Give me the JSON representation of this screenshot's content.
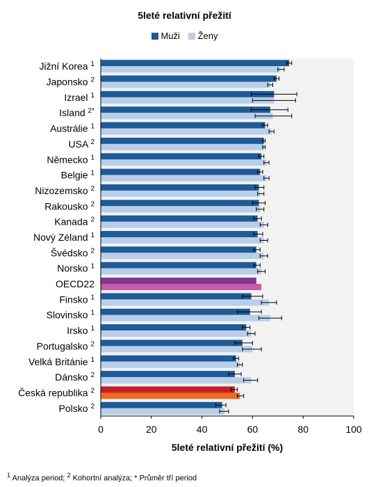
{
  "chart_data": {
    "type": "bar",
    "orientation": "horizontal",
    "title": "5leté relativní přežití",
    "xlabel": "5leté relativní přežití (%)",
    "ylabel": "",
    "xlim": [
      0,
      100
    ],
    "xticks": [
      "0",
      "20",
      "40",
      "60",
      "80",
      "100"
    ],
    "grid": false,
    "legend_position": "top",
    "categories": [
      {
        "name": "Jižní Korea",
        "sup": "1"
      },
      {
        "name": "Japonsko",
        "sup": "2"
      },
      {
        "name": "Izrael",
        "sup": "1"
      },
      {
        "name": "Island",
        "sup": "2*"
      },
      {
        "name": "Austrálie",
        "sup": "1"
      },
      {
        "name": "USA",
        "sup": "2"
      },
      {
        "name": "Německo",
        "sup": "1"
      },
      {
        "name": "Belgie",
        "sup": "1"
      },
      {
        "name": "Nizozemsko",
        "sup": "2"
      },
      {
        "name": "Rakousko",
        "sup": "2"
      },
      {
        "name": "Kanada",
        "sup": "2"
      },
      {
        "name": "Nový Zéland",
        "sup": "1"
      },
      {
        "name": "Švédsko",
        "sup": "2"
      },
      {
        "name": "Norsko",
        "sup": "1"
      },
      {
        "name": "OECD22",
        "sup": ""
      },
      {
        "name": "Finsko",
        "sup": "1"
      },
      {
        "name": "Slovinsko",
        "sup": "1"
      },
      {
        "name": "Irsko",
        "sup": "1"
      },
      {
        "name": "Portugalsko",
        "sup": "2"
      },
      {
        "name": "Velká Británie",
        "sup": "1"
      },
      {
        "name": "Dánsko",
        "sup": "2"
      },
      {
        "name": "Česká republika",
        "sup": "2"
      },
      {
        "name": "Polsko",
        "sup": "2"
      }
    ],
    "series": [
      {
        "name": "Muži",
        "color": "#1f5b96",
        "values": [
          74.5,
          69.5,
          68.5,
          67,
          65,
          64.5,
          63.5,
          63,
          62.5,
          62.5,
          62,
          62,
          61.5,
          61.5,
          61.5,
          59.5,
          59,
          57.5,
          56,
          53.5,
          53,
          53,
          48
        ],
        "ci": [
          [
            73.5,
            75.5
          ],
          [
            68.5,
            70.5
          ],
          [
            59.5,
            77.5
          ],
          [
            59.5,
            74
          ],
          [
            64,
            66
          ],
          [
            64,
            65
          ],
          [
            62.5,
            64.5
          ],
          [
            62,
            64
          ],
          [
            61,
            64.5
          ],
          [
            60,
            65
          ],
          [
            60.5,
            63.5
          ],
          [
            60.5,
            64
          ],
          [
            60.5,
            63
          ],
          [
            60.5,
            63
          ],
          null,
          [
            56,
            64
          ],
          [
            54,
            63.5
          ],
          [
            56,
            59
          ],
          [
            53,
            60
          ],
          [
            52.5,
            54.5
          ],
          [
            50.5,
            55.5
          ],
          [
            51.5,
            54
          ],
          [
            45.5,
            49.5
          ]
        ]
      },
      {
        "name": "Ženy",
        "color": "#b8cfe9",
        "values": [
          71,
          67,
          68.5,
          68,
          67.5,
          64.5,
          65.5,
          65.5,
          63,
          63,
          64.5,
          64.5,
          64.5,
          63.5,
          63.5,
          66.5,
          67,
          59.5,
          60,
          55,
          59.5,
          55,
          49
        ],
        "ci": [
          [
            70,
            72.5
          ],
          [
            66,
            68
          ],
          [
            60,
            77
          ],
          [
            61,
            75.5
          ],
          [
            66.5,
            68.5
          ],
          [
            64,
            65
          ],
          [
            64.5,
            66.5
          ],
          [
            64.5,
            66.5
          ],
          [
            62,
            64.5
          ],
          [
            61.5,
            64.5
          ],
          [
            63,
            66
          ],
          [
            63,
            66
          ],
          [
            63,
            66
          ],
          [
            62,
            65
          ],
          null,
          [
            63.5,
            69.5
          ],
          [
            62.5,
            71.5
          ],
          [
            58,
            61
          ],
          [
            56,
            63.5
          ],
          [
            54,
            56
          ],
          [
            56.5,
            62
          ],
          [
            54,
            56.5
          ],
          [
            47,
            50.5
          ]
        ]
      }
    ],
    "highlight": {
      "OECD22": {
        "men": "#7d3a8e",
        "women": "#c45bab"
      },
      "Česká republika": {
        "men": "#c0202a",
        "women": "#ee6a23"
      }
    }
  },
  "legend": {
    "men_label": "Muži",
    "women_label": "Ženy"
  },
  "footnote": {
    "sup1": "1",
    "text1": " Analýza period; ",
    "sup2": "2",
    "text2": " Kohortní analýza; * Průměr tří period"
  }
}
